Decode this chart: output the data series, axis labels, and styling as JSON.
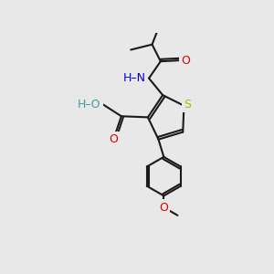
{
  "background_color": "#e8e8e8",
  "bond_color": "#1a1a1a",
  "S_color": "#b8b800",
  "N_color": "#0000dd",
  "O_color": "#dd0000",
  "OH_color": "#4a9999",
  "line_width": 1.5,
  "font_size": 9.0,
  "fig_width": 3.0,
  "fig_height": 3.0,
  "dpi": 100,
  "xlim": [
    0,
    10
  ],
  "ylim": [
    0,
    10
  ]
}
